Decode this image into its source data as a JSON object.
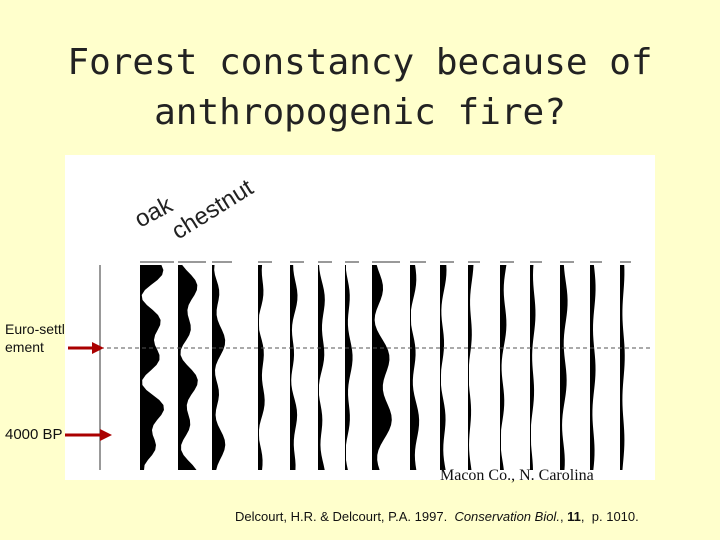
{
  "title": "Forest constancy because of anthropogenic fire?",
  "labels": {
    "oak": "oak",
    "chestnut": "chestnut",
    "euro_settlement": "Euro-settlement",
    "bp": "4000 BP",
    "location": "Macon Co., N. Carolina"
  },
  "citation": {
    "authors": "Delcourt, H.R. & Delcourt, P.A. 1997.",
    "journal": "Conservation Biol.",
    "volume": "11",
    "pages": "p. 1010."
  }
}
